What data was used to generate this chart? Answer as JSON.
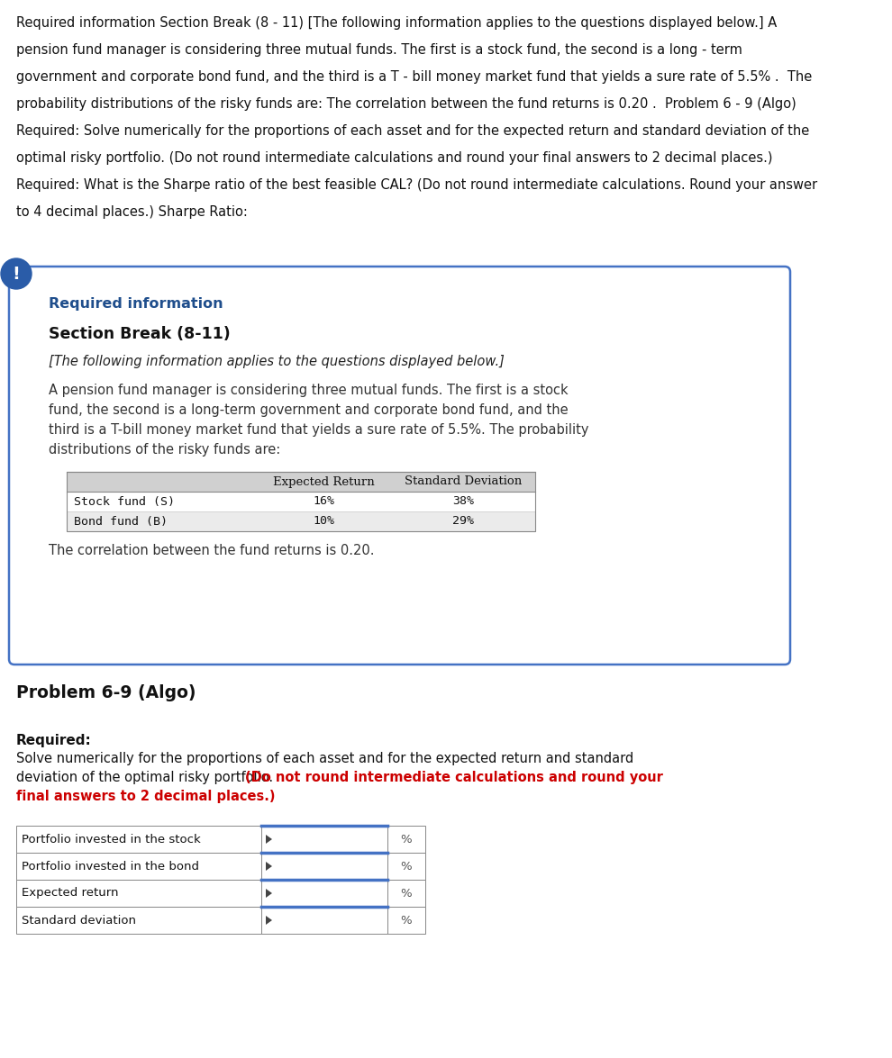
{
  "page_bg": "#ffffff",
  "top_text_lines": [
    "Required information Section Break (8 - 11) [The following information applies to the questions displayed below.] A",
    "pension fund manager is considering three mutual funds. The first is a stock fund, the second is a long - term",
    "government and corporate bond fund, and the third is a T - bill money market fund that yields a sure rate of 5.5% .  The",
    "probability distributions of the risky funds are: The correlation between the fund returns is 0.20 .  Problem 6 - 9 (Algo)",
    "Required: Solve numerically for the proportions of each asset and for the expected return and standard deviation of the",
    "optimal risky portfolio. (Do not round intermediate calculations and round your final answers to 2 decimal places.)",
    "Required: What is the Sharpe ratio of the best feasible CAL? (Do not round intermediate calculations. Round your answer",
    "to 4 decimal places.) Sharpe Ratio:"
  ],
  "box_border_color": "#4472c4",
  "box_bg": "#ffffff",
  "exclamation_bg": "#2a5ca8",
  "exclamation_text": "!",
  "exclamation_color": "#ffffff",
  "req_info_label": "Required information",
  "req_info_color": "#1f4e8c",
  "section_break_label": "Section Break (8-11)",
  "italic_line": "[The following information applies to the questions displayed below.]",
  "body_lines": [
    "A pension fund manager is considering three mutual funds. The first is a stock",
    "fund, the second is a long-term government and corporate bond fund, and the",
    "third is a T-bill money market fund that yields a sure rate of 5.5%. The probability",
    "distributions of the risky funds are:"
  ],
  "table_header_bg": "#d0d0d0",
  "table_header_cols": [
    "Expected Return",
    "Standard Deviation"
  ],
  "table_rows": [
    [
      "Stock fund (S)",
      "16%",
      "38%"
    ],
    [
      "Bond fund (B)",
      "10%",
      "29%"
    ]
  ],
  "correlation_text": "The correlation between the fund returns is 0.20.",
  "problem_title": "Problem 6-9 (Algo)",
  "required_label": "Required:",
  "req_normal_line1": "Solve numerically for the proportions of each asset and for the expected return and standard",
  "req_normal_line2_pre": "deviation of the optimal risky portfolio. ",
  "req_red_line1": "(Do not round intermediate calculations and round your",
  "req_red_line2": "final answers to 2 decimal places.)",
  "input_table_rows": [
    "Portfolio invested in the stock",
    "Portfolio invested in the bond",
    "Expected return",
    "Standard deviation"
  ],
  "input_unit": "%",
  "table_border_color": "#888888",
  "blue_accent": "#4472c4",
  "font_size_top": 10.5,
  "font_size_box_body": 10.5,
  "font_size_problem": 13.5,
  "font_size_req_label": 11.0,
  "font_size_table": 9.5,
  "font_size_input_label": 9.5
}
